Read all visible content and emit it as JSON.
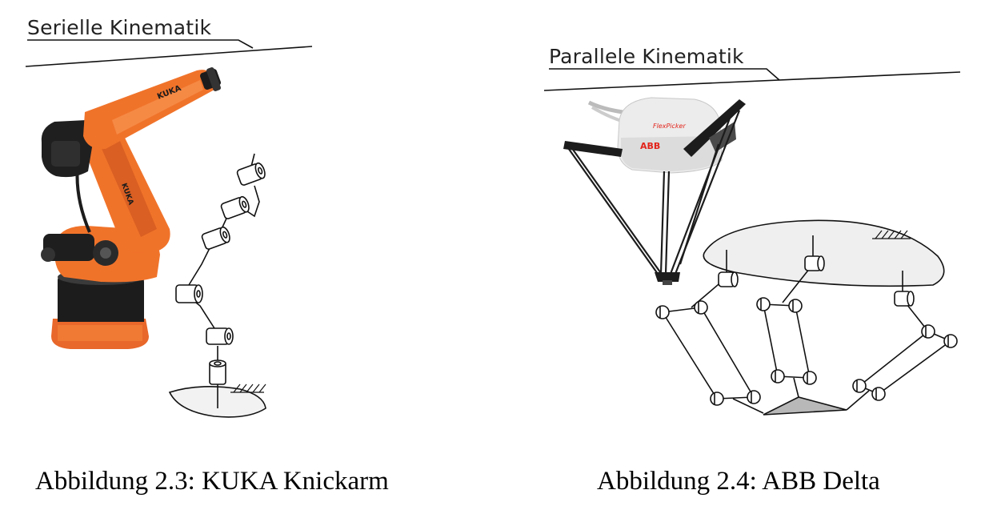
{
  "left": {
    "heading": "Serielle Kinematik",
    "caption": "Abbildung 2.3: KUKA Knickarm",
    "robot_logo_text": "KUKA"
  },
  "right": {
    "heading": "Parallele Kinematik",
    "caption": "Abbildung 2.4: ABB Delta",
    "robot_logo_text": "ABB",
    "robot_product_text": "FlexPicker"
  },
  "colors": {
    "kuka_orange": "#f0732a",
    "kuka_orange_dark": "#c9561a",
    "robot_black": "#1c1c1c",
    "abb_white": "#ececec",
    "abb_red": "#e2231a",
    "base_plate_fill": "#efefef",
    "effector_fill": "#b8b8b8"
  }
}
